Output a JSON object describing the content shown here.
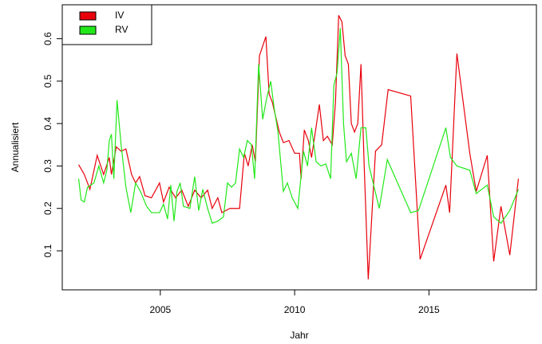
{
  "chart_data": {
    "type": "line",
    "x_label": "Jahr",
    "y_label": "Annualisiert",
    "xlim": [
      2001.35,
      2019.0
    ],
    "ylim": [
      0.008,
      0.68
    ],
    "xticks": [
      2005,
      2010,
      2015
    ],
    "yticks": [
      0.1,
      0.2,
      0.3,
      0.4,
      0.5,
      0.6
    ],
    "legend": "topleft",
    "series": [
      {
        "name": "IV",
        "color": "#e8000b",
        "x": [
          2001.96,
          2002.17,
          2002.38,
          2002.65,
          2002.89,
          2003.1,
          2003.18,
          2003.36,
          2003.54,
          2003.72,
          2003.93,
          2004.08,
          2004.23,
          2004.43,
          2004.67,
          2004.97,
          2005.12,
          2005.33,
          2005.57,
          2005.8,
          2006.04,
          2006.28,
          2006.52,
          2006.76,
          2006.93,
          2007.14,
          2007.29,
          2007.59,
          2007.77,
          2007.95,
          2008.13,
          2008.27,
          2008.42,
          2008.54,
          2008.69,
          2008.93,
          2009.05,
          2009.17,
          2009.43,
          2009.58,
          2009.79,
          2010.0,
          2010.18,
          2010.24,
          2010.36,
          2010.51,
          2010.63,
          2010.77,
          2010.92,
          2011.07,
          2011.22,
          2011.4,
          2011.52,
          2011.64,
          2011.76,
          2011.88,
          2012.0,
          2012.11,
          2012.23,
          2012.35,
          2012.47,
          2012.59,
          2012.74,
          2013.01,
          2013.24,
          2013.48,
          2014.32,
          2014.67,
          2015.63,
          2015.77,
          2016.04,
          2016.52,
          2016.76,
          2017.17,
          2017.41,
          2017.68,
          2018.01,
          2018.33
        ],
        "values": [
          0.303,
          0.28,
          0.245,
          0.325,
          0.28,
          0.32,
          0.28,
          0.345,
          0.335,
          0.34,
          0.28,
          0.26,
          0.275,
          0.23,
          0.225,
          0.26,
          0.215,
          0.25,
          0.225,
          0.243,
          0.205,
          0.243,
          0.225,
          0.243,
          0.2,
          0.225,
          0.19,
          0.2,
          0.2,
          0.2,
          0.33,
          0.3,
          0.35,
          0.31,
          0.56,
          0.605,
          0.47,
          0.45,
          0.38,
          0.355,
          0.36,
          0.33,
          0.33,
          0.27,
          0.385,
          0.36,
          0.32,
          0.38,
          0.445,
          0.36,
          0.37,
          0.35,
          0.45,
          0.655,
          0.64,
          0.56,
          0.54,
          0.4,
          0.38,
          0.4,
          0.54,
          0.3,
          0.033,
          0.335,
          0.35,
          0.48,
          0.465,
          0.08,
          0.255,
          0.19,
          0.565,
          0.33,
          0.24,
          0.325,
          0.075,
          0.205,
          0.09,
          0.27
        ]
      },
      {
        "name": "RV",
        "color": "#22e81a",
        "x": [
          2001.96,
          2002.05,
          2002.17,
          2002.29,
          2002.53,
          2002.71,
          2002.89,
          2003.01,
          2003.1,
          2003.18,
          2003.27,
          2003.39,
          2003.54,
          2003.72,
          2003.9,
          2004.08,
          2004.26,
          2004.49,
          2004.67,
          2004.97,
          2005.12,
          2005.27,
          2005.39,
          2005.51,
          2005.62,
          2005.74,
          2005.86,
          2006.1,
          2006.28,
          2006.43,
          2006.58,
          2006.76,
          2006.93,
          2007.14,
          2007.35,
          2007.5,
          2007.65,
          2007.8,
          2007.95,
          2008.1,
          2008.24,
          2008.39,
          2008.51,
          2008.66,
          2008.81,
          2008.96,
          2009.11,
          2009.23,
          2009.38,
          2009.58,
          2009.73,
          2009.91,
          2010.12,
          2010.33,
          2010.48,
          2010.63,
          2010.8,
          2010.98,
          2011.16,
          2011.34,
          2011.46,
          2011.58,
          2011.7,
          2011.82,
          2011.93,
          2012.11,
          2012.29,
          2012.47,
          2012.65,
          2012.77,
          2013.15,
          2013.45,
          2014.32,
          2014.61,
          2015.63,
          2015.8,
          2016.04,
          2016.52,
          2016.76,
          2017.17,
          2017.41,
          2017.68,
          2018.01,
          2018.33
        ],
        "values": [
          0.27,
          0.22,
          0.215,
          0.25,
          0.26,
          0.3,
          0.26,
          0.29,
          0.36,
          0.375,
          0.27,
          0.455,
          0.35,
          0.25,
          0.19,
          0.26,
          0.24,
          0.205,
          0.19,
          0.19,
          0.21,
          0.175,
          0.255,
          0.17,
          0.24,
          0.26,
          0.205,
          0.2,
          0.275,
          0.195,
          0.245,
          0.2,
          0.165,
          0.17,
          0.18,
          0.26,
          0.25,
          0.26,
          0.34,
          0.32,
          0.36,
          0.35,
          0.27,
          0.54,
          0.41,
          0.46,
          0.5,
          0.44,
          0.38,
          0.24,
          0.26,
          0.225,
          0.2,
          0.335,
          0.3,
          0.39,
          0.31,
          0.3,
          0.305,
          0.27,
          0.49,
          0.52,
          0.625,
          0.4,
          0.31,
          0.33,
          0.27,
          0.39,
          0.39,
          0.3,
          0.2,
          0.315,
          0.19,
          0.195,
          0.39,
          0.32,
          0.3,
          0.29,
          0.235,
          0.255,
          0.18,
          0.165,
          0.195,
          0.245
        ]
      }
    ]
  }
}
